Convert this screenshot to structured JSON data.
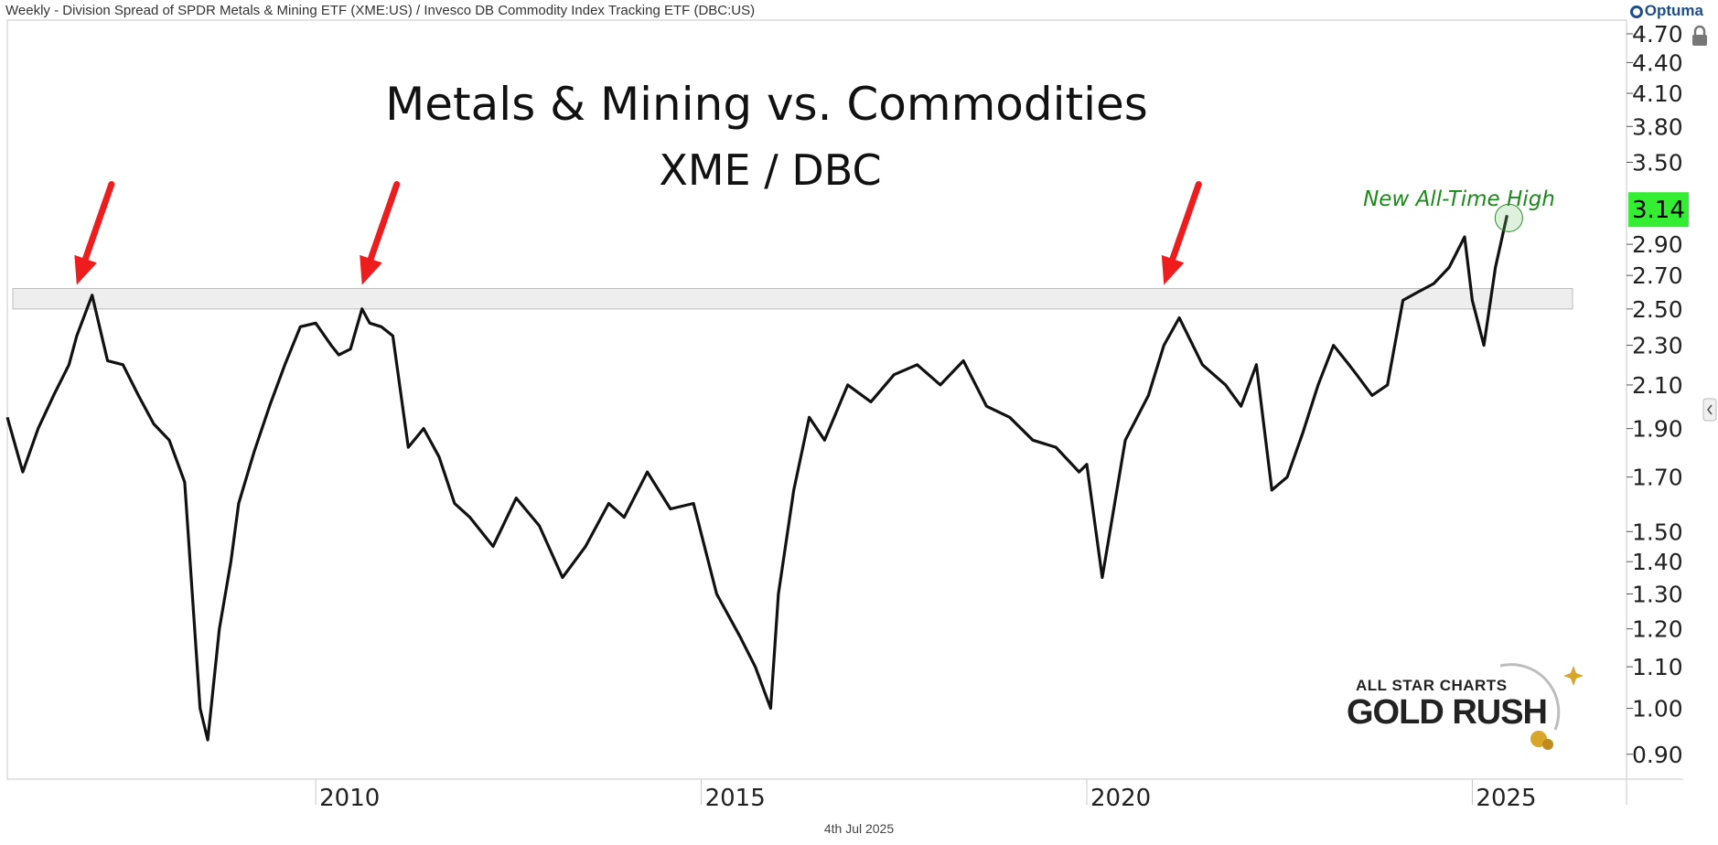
{
  "header": {
    "title": "Weekly - Division Spread of SPDR Metals & Mining ETF (XME:US) / Invesco DB Commodity Index Tracking ETF (DBC:US)",
    "brand": "Optuma"
  },
  "footer": {
    "date": "4th Jul 2025"
  },
  "logo": {
    "line1": "ALL STAR CHARTS",
    "line2": "GOLD RUSH",
    "color": "#d9a52a"
  },
  "chart_data": {
    "type": "line",
    "title": "Metals & Mining vs. Commodities",
    "subtitle": "XME / DBC",
    "scale": "log",
    "ylim": [
      0.85,
      4.85
    ],
    "xlim": [
      2006.0,
      2027.0
    ],
    "y_ticks": [
      "4.70",
      "4.40",
      "4.10",
      "3.80",
      "3.50",
      "2.90",
      "2.70",
      "2.50",
      "2.30",
      "2.10",
      "1.90",
      "1.70",
      "1.50",
      "1.40",
      "1.30",
      "1.20",
      "1.10",
      "1.00",
      "0.90"
    ],
    "x_ticks": [
      "2010",
      "2015",
      "2020",
      "2025"
    ],
    "last_value": "3.14",
    "last_value_color": "#33ee33",
    "annotation": "New All-Time High",
    "annotation_color": "#1a8a1a",
    "resistance_zone": [
      2.5,
      2.62
    ],
    "arrow_color": "#ee1c1c",
    "arrows_at": [
      2006.9,
      2010.6,
      2021.0
    ],
    "series": [
      {
        "x": [
          2006.0,
          2006.2,
          2006.4,
          2006.6,
          2006.8,
          2006.9,
          2007.1,
          2007.3,
          2007.5,
          2007.7,
          2007.9,
          2008.1,
          2008.3,
          2008.5,
          2008.6,
          2008.75,
          2008.9,
          2009.0,
          2009.2,
          2009.4,
          2009.6,
          2009.8,
          2010.0,
          2010.2,
          2010.3,
          2010.45,
          2010.6,
          2010.7,
          2010.85,
          2011.0,
          2011.2,
          2011.4,
          2011.6,
          2011.8,
          2012.0,
          2012.3,
          2012.6,
          2012.9,
          2013.2,
          2013.5,
          2013.8,
          2014.0,
          2014.3,
          2014.6,
          2014.9,
          2015.2,
          2015.5,
          2015.7,
          2015.9,
          2016.0,
          2016.2,
          2016.4,
          2016.6,
          2016.9,
          2017.2,
          2017.5,
          2017.8,
          2018.1,
          2018.4,
          2018.7,
          2019.0,
          2019.3,
          2019.6,
          2019.9,
          2020.0,
          2020.2,
          2020.5,
          2020.8,
          2021.0,
          2021.2,
          2021.5,
          2021.8,
          2022.0,
          2022.2,
          2022.4,
          2022.6,
          2022.8,
          2023.0,
          2023.2,
          2023.4,
          2023.5,
          2023.7,
          2023.9,
          2024.1,
          2024.3,
          2024.5,
          2024.7,
          2024.9,
          2025.0,
          2025.15,
          2025.3,
          2025.45
        ],
        "y": [
          1.95,
          1.72,
          1.9,
          2.05,
          2.2,
          2.35,
          2.58,
          2.22,
          2.2,
          2.05,
          1.92,
          1.85,
          1.68,
          1.0,
          0.93,
          1.2,
          1.4,
          1.6,
          1.8,
          2.0,
          2.2,
          2.4,
          2.42,
          2.3,
          2.25,
          2.28,
          2.5,
          2.42,
          2.4,
          2.35,
          1.82,
          1.9,
          1.78,
          1.6,
          1.55,
          1.45,
          1.62,
          1.52,
          1.35,
          1.45,
          1.6,
          1.55,
          1.72,
          1.58,
          1.6,
          1.3,
          1.18,
          1.1,
          1.0,
          1.3,
          1.65,
          1.95,
          1.85,
          2.1,
          2.02,
          2.15,
          2.2,
          2.1,
          2.22,
          2.0,
          1.95,
          1.85,
          1.82,
          1.72,
          1.75,
          1.35,
          1.85,
          2.05,
          2.3,
          2.45,
          2.2,
          2.1,
          2.0,
          2.2,
          1.65,
          1.7,
          1.88,
          2.1,
          2.3,
          2.2,
          2.15,
          2.05,
          2.1,
          2.55,
          2.6,
          2.65,
          2.75,
          2.95,
          2.55,
          2.3,
          2.75,
          3.1
        ]
      }
    ]
  }
}
